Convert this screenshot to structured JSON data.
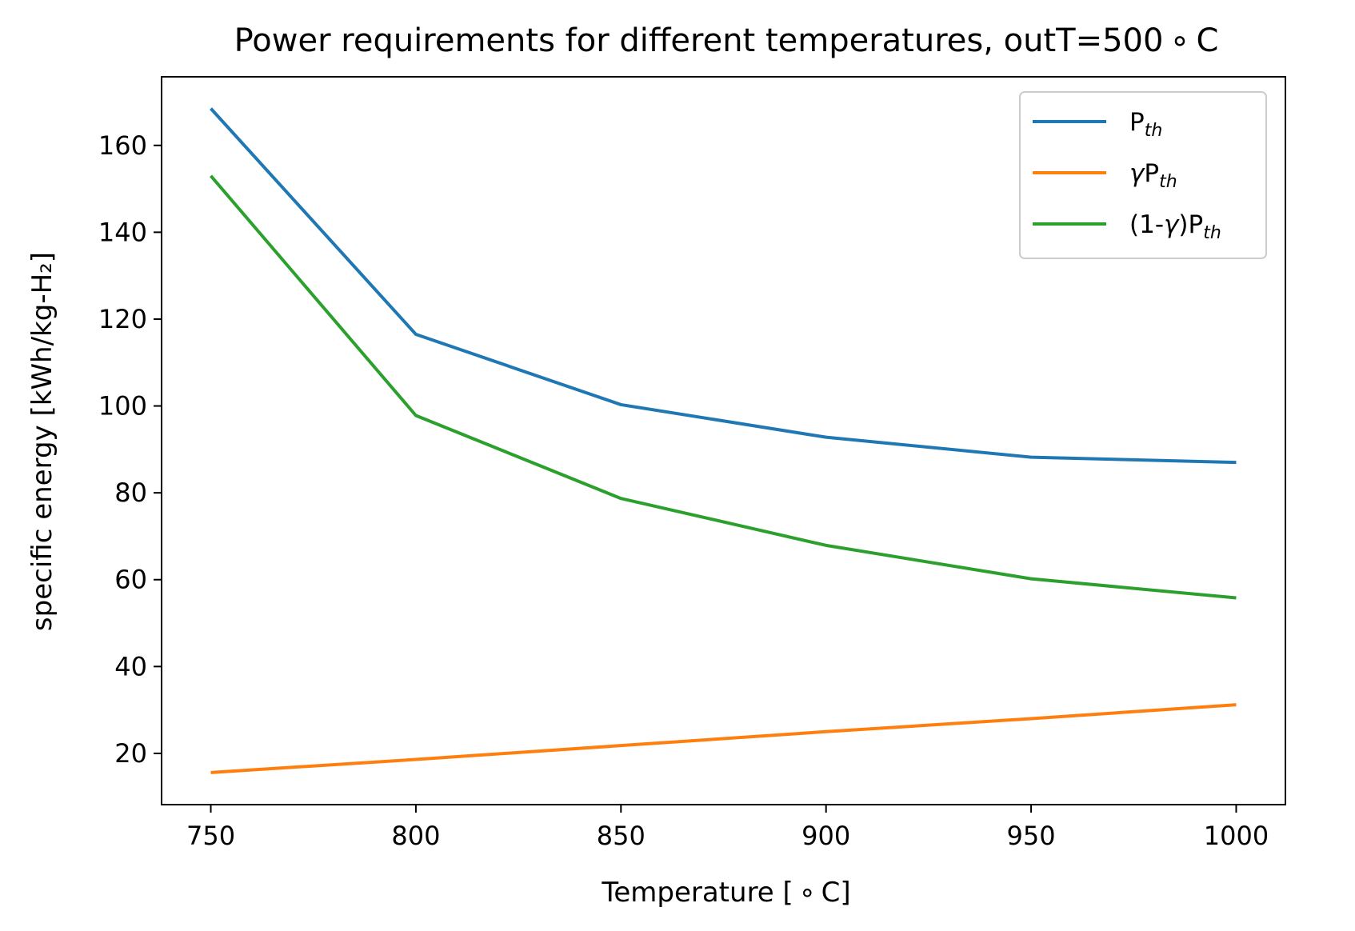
{
  "chart_data": {
    "type": "line",
    "title": "Power requirements for different temperatures, outT=500 ∘ C",
    "xlabel": "Temperature [ ∘ C]",
    "ylabel": "specific energy [kWh/kg-H₂]",
    "x": [
      750,
      800,
      850,
      900,
      950,
      1000
    ],
    "xlim": [
      738,
      1012
    ],
    "ylim": [
      8.2,
      175.8
    ],
    "xticks": [
      750,
      800,
      850,
      900,
      950,
      1000
    ],
    "yticks": [
      20,
      40,
      60,
      80,
      100,
      120,
      140,
      160
    ],
    "grid": false,
    "legend_position": "top-right",
    "series": [
      {
        "name": "P_th",
        "label_main": "P",
        "label_sub": "th",
        "color": "#1f77b4",
        "values": [
          168.5,
          116.5,
          100.3,
          92.8,
          88.2,
          87.0
        ]
      },
      {
        "name": "γP_th",
        "label_pre": "",
        "label_greek": "γ",
        "label_main": "P",
        "label_sub": "th",
        "color": "#ff7f0e",
        "values": [
          15.6,
          18.6,
          21.8,
          25.0,
          28.0,
          31.2
        ]
      },
      {
        "name": "(1-γ)P_th",
        "label_pre": "(1-",
        "label_greek": "γ",
        "label_post": ")",
        "label_main": "P",
        "label_sub": "th",
        "color": "#2ca02c",
        "values": [
          153.0,
          97.8,
          78.7,
          67.9,
          60.2,
          55.8
        ]
      }
    ]
  }
}
